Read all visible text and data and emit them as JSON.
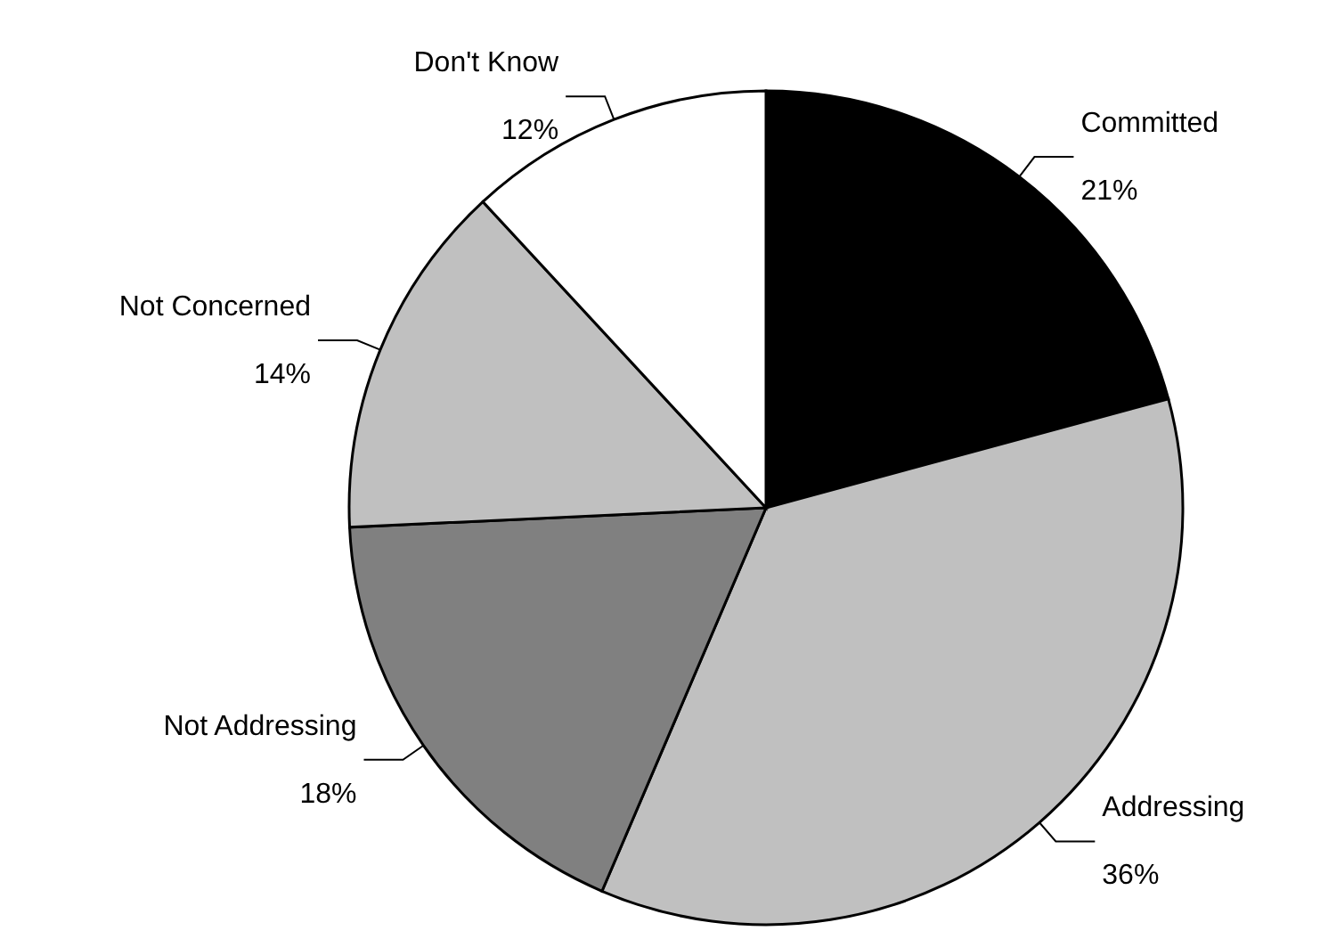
{
  "chart_data": {
    "type": "pie",
    "categories": [
      "Committed",
      "Addressing",
      "Not Addressing",
      "Not Concerned",
      "Don't Know"
    ],
    "values": [
      21,
      36,
      18,
      14,
      12
    ],
    "colors": [
      "#000000",
      "#c0c0c0",
      "#808080",
      "#c0c0c0",
      "#ffffff"
    ],
    "value_labels": [
      "21%",
      "36%",
      "18%",
      "14%",
      "12%"
    ]
  }
}
